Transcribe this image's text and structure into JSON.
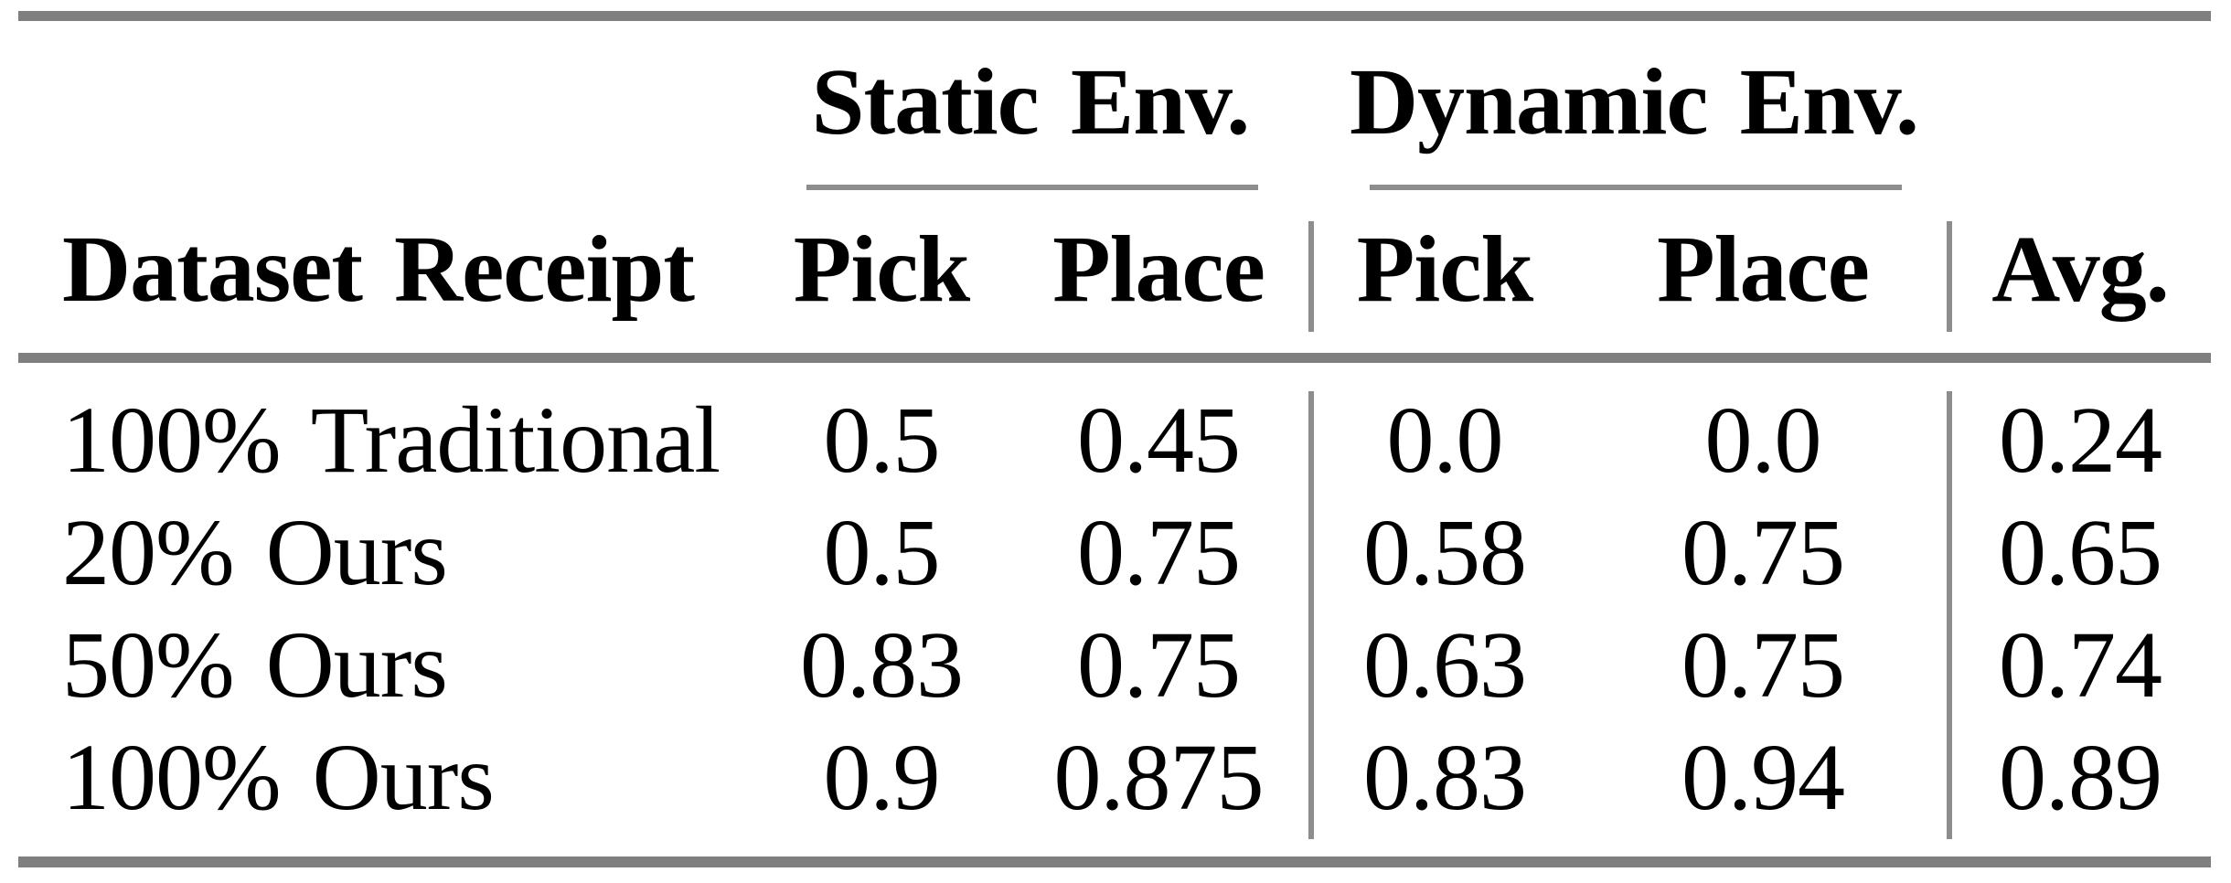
{
  "table": {
    "groups": [
      {
        "label": "Static Env."
      },
      {
        "label": "Dynamic Env."
      }
    ],
    "columns": {
      "row_header": "Dataset Receipt",
      "static_pick": "Pick",
      "static_place": "Place",
      "dynamic_pick": "Pick",
      "dynamic_place": "Place",
      "avg": "Avg."
    },
    "rows": [
      {
        "label": "100% Traditional",
        "static_pick": "0.5",
        "static_place": "0.45",
        "dynamic_pick": "0.0",
        "dynamic_place": "0.0",
        "avg": "0.24"
      },
      {
        "label": "20% Ours",
        "static_pick": "0.5",
        "static_place": "0.75",
        "dynamic_pick": "0.58",
        "dynamic_place": "0.75",
        "avg": "0.65"
      },
      {
        "label": "50% Ours",
        "static_pick": "0.83",
        "static_place": "0.75",
        "dynamic_pick": "0.63",
        "dynamic_place": "0.75",
        "avg": "0.74"
      },
      {
        "label": "100% Ours",
        "static_pick": "0.9",
        "static_place": "0.875",
        "dynamic_pick": "0.83",
        "dynamic_place": "0.94",
        "avg": "0.89"
      }
    ],
    "colors": {
      "rule_gray": "#7f7f7f",
      "text": "#000000"
    }
  },
  "chart_data": {
    "type": "table",
    "title": "",
    "column_groups": [
      "",
      "Static Env.",
      "Static Env.",
      "Dynamic Env.",
      "Dynamic Env.",
      ""
    ],
    "columns": [
      "Dataset Receipt",
      "Pick",
      "Place",
      "Pick",
      "Place",
      "Avg."
    ],
    "rows": [
      [
        "100% Traditional",
        0.5,
        0.45,
        0.0,
        0.0,
        0.24
      ],
      [
        "20% Ours",
        0.5,
        0.75,
        0.58,
        0.75,
        0.65
      ],
      [
        "50% Ours",
        0.83,
        0.75,
        0.63,
        0.75,
        0.74
      ],
      [
        "100% Ours",
        0.9,
        0.875,
        0.83,
        0.94,
        0.89
      ]
    ]
  }
}
